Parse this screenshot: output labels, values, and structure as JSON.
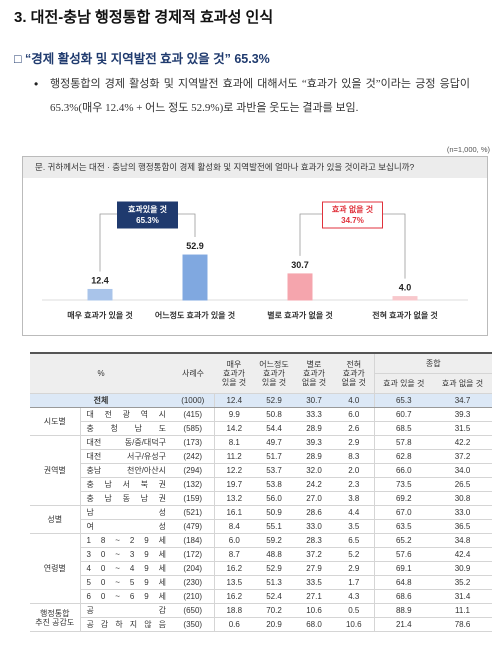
{
  "heading": "3. 대전-충남 행정통합 경제적 효과성 인식",
  "subheading": "□ “경제 활성화 및 지역발전 효과 있을 것” 65.3%",
  "bullet": "행정통합의 경제 활성화 및 지역발전 효과에 대해서도 “효과가 있을 것”이라는 긍정 응답이 65.3%(매우 12.4% + 어느 정도 52.9%)로 과반을 웃도는 결과를 보임.",
  "note": "(n=1,000, %)",
  "question": "문. 귀하께서는 대전 · 충남의 행정통합이 경제 활성화 및 지역발전에 얼마나 효과가 있을 것이라고 보십니까?",
  "chart_data": {
    "type": "bar",
    "categories": [
      "매우 효과가 있을 것",
      "어느정도 효과가 있을 것",
      "별로 효과가 없을 것",
      "전혀 효과가 없을 것"
    ],
    "values": [
      12.4,
      52.9,
      30.7,
      4.0
    ],
    "value_labels": [
      "12.4",
      "52.9",
      "30.7",
      "4.0"
    ],
    "colors": [
      "#a9c4ea",
      "#80a8e0",
      "#f5a5ad",
      "#f8c8cc"
    ],
    "ylim": [
      0,
      60
    ],
    "groups": [
      {
        "name": "효과있을 것",
        "value": 65.3,
        "value_label": "65.3%",
        "color": "#1f3a6e"
      },
      {
        "name": "효과 없을 것",
        "value": 34.7,
        "value_label": "34.7%",
        "color": "#e0323c"
      }
    ]
  },
  "table": {
    "header": {
      "label": "%",
      "n": "사례수",
      "columns": [
        "매우 효과가 있을 것",
        "어느정도 효과가 있을 것",
        "별로 효과가 없을 것",
        "전혀 효과가 없을 것"
      ],
      "summary": "종합",
      "summary_columns": [
        "효과 있을 것",
        "효과 없을 것"
      ]
    },
    "total": {
      "label": "전체",
      "n": "(1000)",
      "values": [
        "12.4",
        "52.9",
        "30.7",
        "4.0",
        "65.3",
        "34.7"
      ]
    },
    "groups": [
      {
        "name": "시도별",
        "rows": [
          {
            "label": "대 전 광 역 시",
            "n": "(415)",
            "values": [
              "9.9",
              "50.8",
              "33.3",
              "6.0",
              "60.7",
              "39.3"
            ]
          },
          {
            "label": "충 청 남 도",
            "n": "(585)",
            "values": [
              "14.2",
              "54.4",
              "28.9",
              "2.6",
              "68.5",
              "31.5"
            ]
          }
        ]
      },
      {
        "name": "권역별",
        "rows": [
          {
            "label": "대전 동/중/대덕구",
            "n": "(173)",
            "values": [
              "8.1",
              "49.7",
              "39.3",
              "2.9",
              "57.8",
              "42.2"
            ]
          },
          {
            "label": "대전 서구/유성구",
            "n": "(242)",
            "values": [
              "11.2",
              "51.7",
              "28.9",
              "8.3",
              "62.8",
              "37.2"
            ]
          },
          {
            "label": "충남 천안/아산시",
            "n": "(294)",
            "values": [
              "12.2",
              "53.7",
              "32.0",
              "2.0",
              "66.0",
              "34.0"
            ]
          },
          {
            "label": "충 남 서 북 권",
            "n": "(132)",
            "values": [
              "19.7",
              "53.8",
              "24.2",
              "2.3",
              "73.5",
              "26.5"
            ]
          },
          {
            "label": "충 남 동 남 권",
            "n": "(159)",
            "values": [
              "13.2",
              "56.0",
              "27.0",
              "3.8",
              "69.2",
              "30.8"
            ]
          }
        ]
      },
      {
        "name": "성별",
        "rows": [
          {
            "label": "남 성",
            "n": "(521)",
            "values": [
              "16.1",
              "50.9",
              "28.6",
              "4.4",
              "67.0",
              "33.0"
            ]
          },
          {
            "label": "여 성",
            "n": "(479)",
            "values": [
              "8.4",
              "55.1",
              "33.0",
              "3.5",
              "63.5",
              "36.5"
            ]
          }
        ]
      },
      {
        "name": "연령별",
        "rows": [
          {
            "label": "1 8 ~ 2 9 세",
            "n": "(184)",
            "values": [
              "6.0",
              "59.2",
              "28.3",
              "6.5",
              "65.2",
              "34.8"
            ]
          },
          {
            "label": "3 0 ~ 3 9 세",
            "n": "(172)",
            "values": [
              "8.7",
              "48.8",
              "37.2",
              "5.2",
              "57.6",
              "42.4"
            ]
          },
          {
            "label": "4 0 ~ 4 9 세",
            "n": "(204)",
            "values": [
              "16.2",
              "52.9",
              "27.9",
              "2.9",
              "69.1",
              "30.9"
            ]
          },
          {
            "label": "5 0 ~ 5 9 세",
            "n": "(230)",
            "values": [
              "13.5",
              "51.3",
              "33.5",
              "1.7",
              "64.8",
              "35.2"
            ]
          },
          {
            "label": "6 0 ~ 6 9 세",
            "n": "(210)",
            "values": [
              "16.2",
              "52.4",
              "27.1",
              "4.3",
              "68.6",
              "31.4"
            ]
          }
        ]
      },
      {
        "name": "행정통합 추진 공감도",
        "rows": [
          {
            "label": "공 감",
            "n": "(650)",
            "values": [
              "18.8",
              "70.2",
              "10.6",
              "0.5",
              "88.9",
              "11.1"
            ]
          },
          {
            "label": "공 감 하 지 않 음",
            "n": "(350)",
            "values": [
              "0.6",
              "20.9",
              "68.0",
              "10.6",
              "21.4",
              "78.6"
            ]
          }
        ]
      }
    ]
  }
}
